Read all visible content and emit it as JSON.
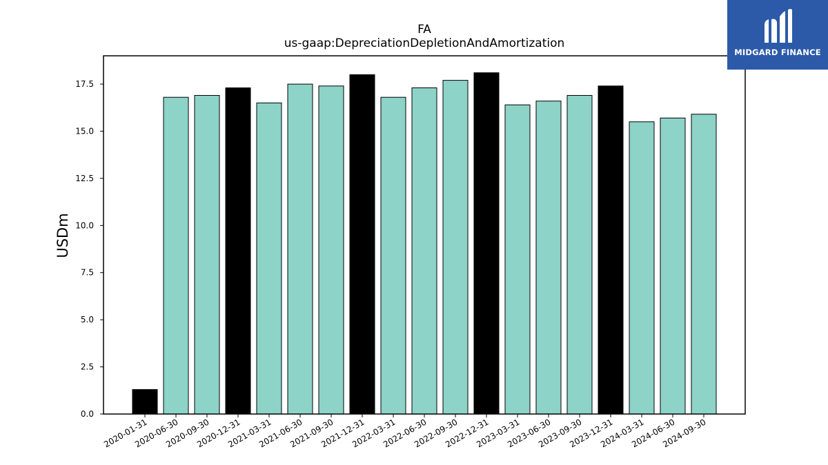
{
  "chart_data": {
    "type": "bar",
    "title": "FA",
    "subtitle": "us-gaap:DepreciationDepletionAndAmortization",
    "xlabel": "",
    "ylabel": "USDm",
    "ylim": [
      0,
      19
    ],
    "yticks": [
      "0.0",
      "2.5",
      "5.0",
      "7.5",
      "10.0",
      "12.5",
      "15.0",
      "17.5"
    ],
    "categories": [
      "2020-01-31",
      "2020-06-30",
      "2020-09-30",
      "2020-12-31",
      "2021-03-31",
      "2021-06-30",
      "2021-09-30",
      "2021-12-31",
      "2022-03-31",
      "2022-06-30",
      "2022-09-30",
      "2022-12-31",
      "2023-03-31",
      "2023-06-30",
      "2023-09-30",
      "2023-12-31",
      "2024-03-31",
      "2024-06-30",
      "2024-09-30"
    ],
    "values": [
      1.3,
      16.8,
      16.9,
      17.3,
      16.5,
      17.5,
      17.4,
      18.0,
      16.8,
      17.3,
      17.7,
      18.1,
      16.4,
      16.6,
      16.9,
      17.4,
      15.5,
      15.7,
      15.9
    ],
    "bar_kind": [
      "annual",
      "quarterly",
      "quarterly",
      "annual",
      "quarterly",
      "quarterly",
      "quarterly",
      "annual",
      "quarterly",
      "quarterly",
      "quarterly",
      "annual",
      "quarterly",
      "quarterly",
      "quarterly",
      "annual",
      "quarterly",
      "quarterly",
      "quarterly"
    ],
    "colors": {
      "quarterly": "#8dd3c7",
      "annual": "#000000",
      "edge": "#000000"
    },
    "grid": false,
    "legend": "none"
  },
  "logo": {
    "text": "MIDGARD FINANCE",
    "background": "#2c5aa8",
    "icon": "midgard-logo-icon"
  }
}
